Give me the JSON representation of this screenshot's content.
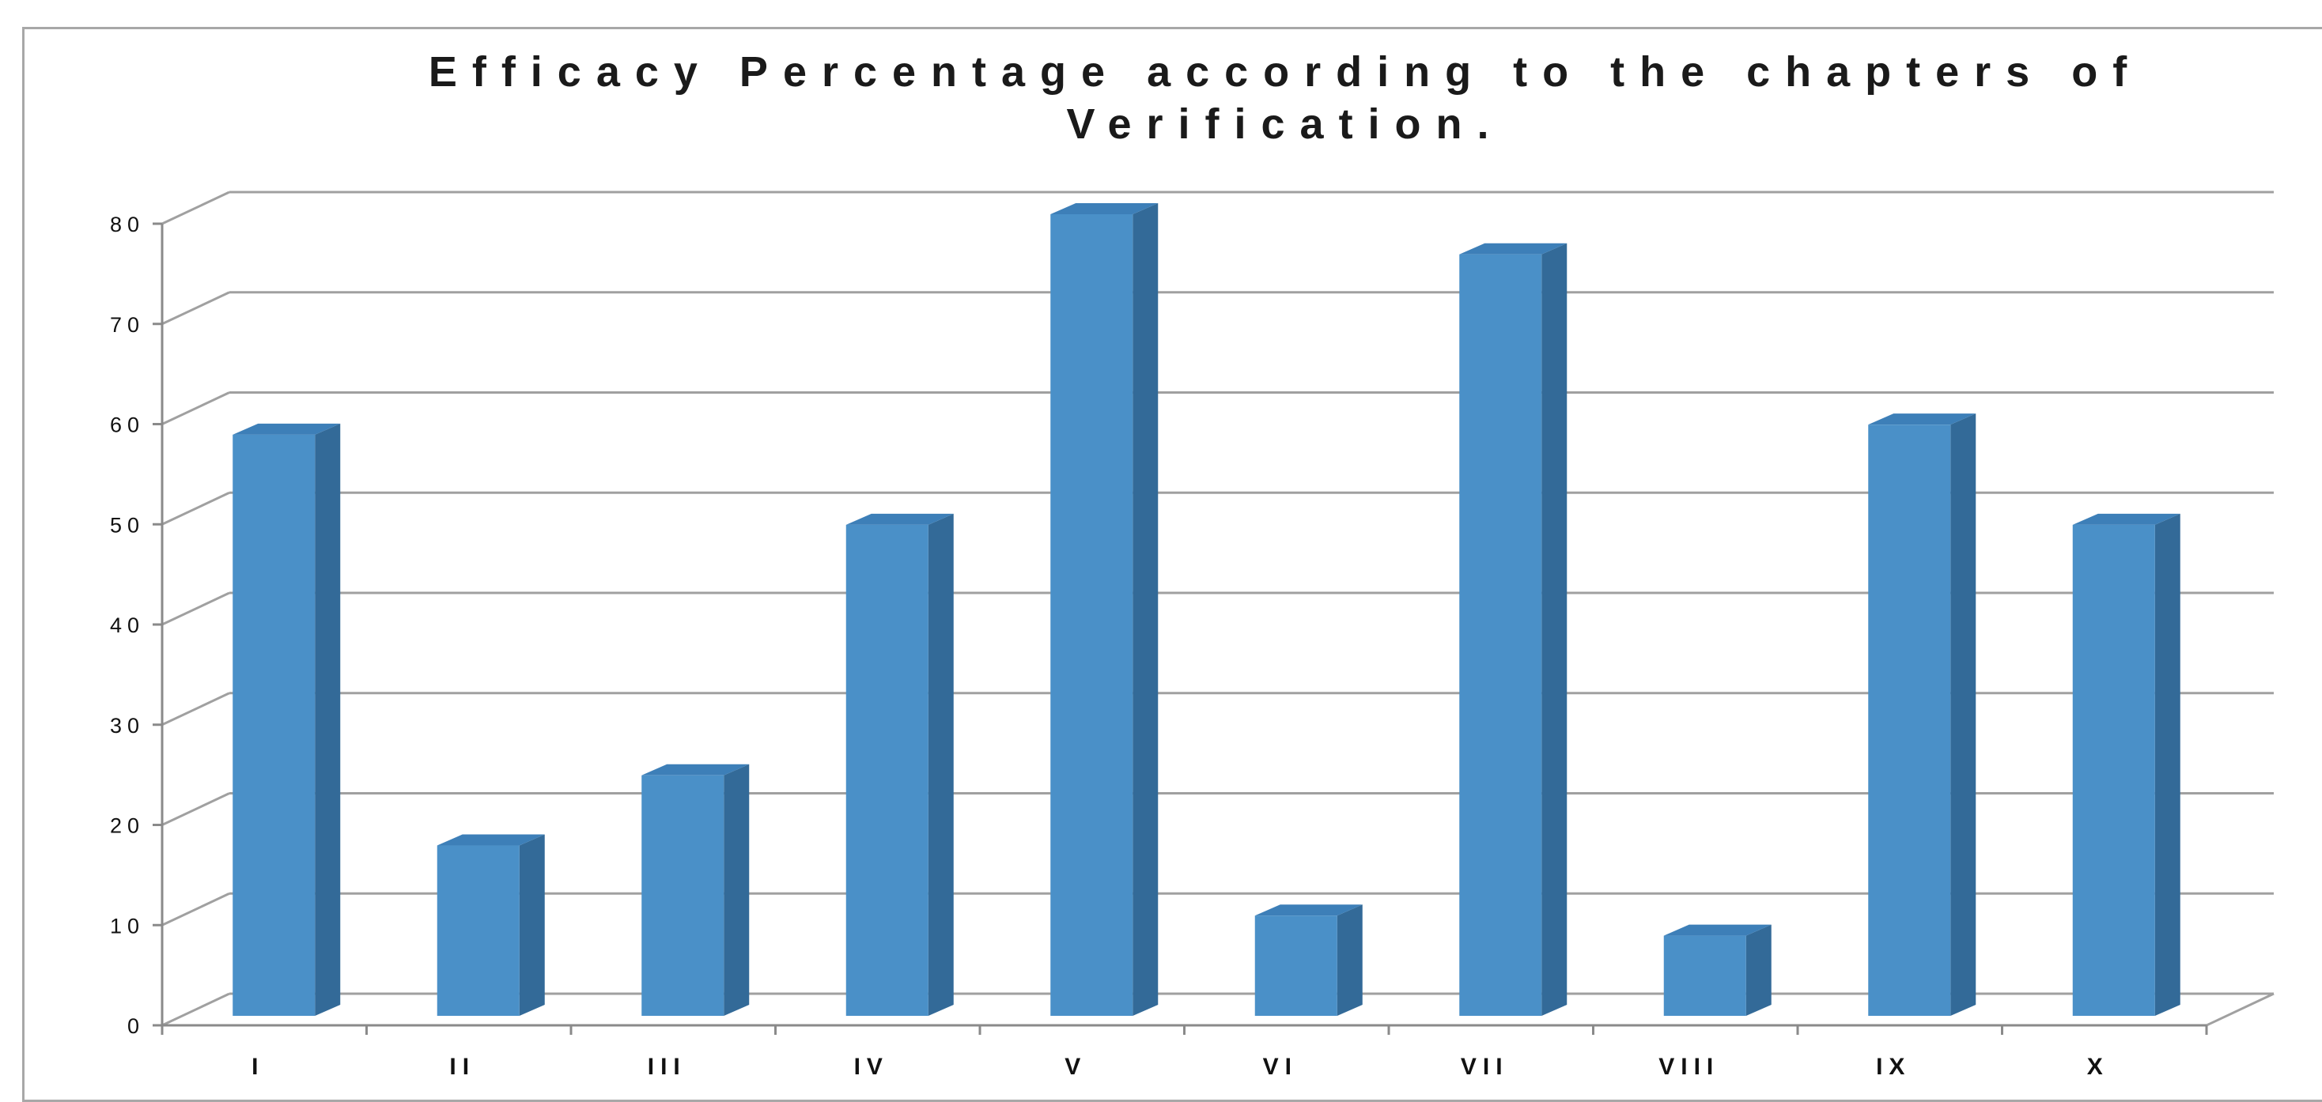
{
  "chart_data": {
    "type": "bar",
    "title": "Efficacy Percentage according to the chapters of\nVerification.",
    "xlabel": "",
    "ylabel": "",
    "categories": [
      "I",
      "II",
      "III",
      "IV",
      "V",
      "VI",
      "VII",
      "VIII",
      "IX",
      "X"
    ],
    "values": [
      58,
      17,
      24,
      49,
      80,
      10,
      76,
      8,
      59,
      49
    ],
    "ylim": [
      0,
      80
    ],
    "yticks": [
      0,
      10,
      20,
      30,
      40,
      50,
      60,
      70,
      80
    ],
    "grid": true,
    "legend": "none",
    "style": "3d-column",
    "colors": {
      "front": "#4a90c8",
      "side": "#336a98",
      "top": "#3d7fb8",
      "gridline": "#a0a0a0"
    }
  }
}
